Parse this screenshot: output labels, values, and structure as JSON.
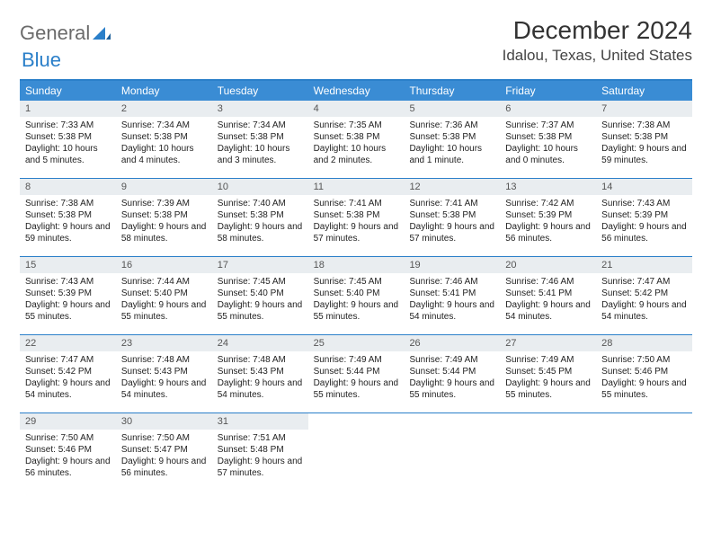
{
  "brand": {
    "part1": "General",
    "part2": "Blue",
    "color_general": "#6b6b6b",
    "color_blue": "#2a7fc9"
  },
  "header": {
    "month_title": "December 2024",
    "location": "Idalou, Texas, United States"
  },
  "colors": {
    "header_bg": "#3a8cd4",
    "header_text": "#ffffff",
    "divider": "#2a7fc9",
    "daynum_bg": "#e9edf0",
    "daynum_text": "#555555",
    "body_text": "#222222",
    "page_bg": "#ffffff"
  },
  "fonts": {
    "month_title_size": 28,
    "location_size": 17,
    "weekday_size": 12,
    "daynum_size": 11,
    "body_size": 10
  },
  "weekdays": [
    "Sunday",
    "Monday",
    "Tuesday",
    "Wednesday",
    "Thursday",
    "Friday",
    "Saturday"
  ],
  "weeks": [
    [
      {
        "n": "1",
        "sunrise": "Sunrise: 7:33 AM",
        "sunset": "Sunset: 5:38 PM",
        "daylight": "Daylight: 10 hours and 5 minutes."
      },
      {
        "n": "2",
        "sunrise": "Sunrise: 7:34 AM",
        "sunset": "Sunset: 5:38 PM",
        "daylight": "Daylight: 10 hours and 4 minutes."
      },
      {
        "n": "3",
        "sunrise": "Sunrise: 7:34 AM",
        "sunset": "Sunset: 5:38 PM",
        "daylight": "Daylight: 10 hours and 3 minutes."
      },
      {
        "n": "4",
        "sunrise": "Sunrise: 7:35 AM",
        "sunset": "Sunset: 5:38 PM",
        "daylight": "Daylight: 10 hours and 2 minutes."
      },
      {
        "n": "5",
        "sunrise": "Sunrise: 7:36 AM",
        "sunset": "Sunset: 5:38 PM",
        "daylight": "Daylight: 10 hours and 1 minute."
      },
      {
        "n": "6",
        "sunrise": "Sunrise: 7:37 AM",
        "sunset": "Sunset: 5:38 PM",
        "daylight": "Daylight: 10 hours and 0 minutes."
      },
      {
        "n": "7",
        "sunrise": "Sunrise: 7:38 AM",
        "sunset": "Sunset: 5:38 PM",
        "daylight": "Daylight: 9 hours and 59 minutes."
      }
    ],
    [
      {
        "n": "8",
        "sunrise": "Sunrise: 7:38 AM",
        "sunset": "Sunset: 5:38 PM",
        "daylight": "Daylight: 9 hours and 59 minutes."
      },
      {
        "n": "9",
        "sunrise": "Sunrise: 7:39 AM",
        "sunset": "Sunset: 5:38 PM",
        "daylight": "Daylight: 9 hours and 58 minutes."
      },
      {
        "n": "10",
        "sunrise": "Sunrise: 7:40 AM",
        "sunset": "Sunset: 5:38 PM",
        "daylight": "Daylight: 9 hours and 58 minutes."
      },
      {
        "n": "11",
        "sunrise": "Sunrise: 7:41 AM",
        "sunset": "Sunset: 5:38 PM",
        "daylight": "Daylight: 9 hours and 57 minutes."
      },
      {
        "n": "12",
        "sunrise": "Sunrise: 7:41 AM",
        "sunset": "Sunset: 5:38 PM",
        "daylight": "Daylight: 9 hours and 57 minutes."
      },
      {
        "n": "13",
        "sunrise": "Sunrise: 7:42 AM",
        "sunset": "Sunset: 5:39 PM",
        "daylight": "Daylight: 9 hours and 56 minutes."
      },
      {
        "n": "14",
        "sunrise": "Sunrise: 7:43 AM",
        "sunset": "Sunset: 5:39 PM",
        "daylight": "Daylight: 9 hours and 56 minutes."
      }
    ],
    [
      {
        "n": "15",
        "sunrise": "Sunrise: 7:43 AM",
        "sunset": "Sunset: 5:39 PM",
        "daylight": "Daylight: 9 hours and 55 minutes."
      },
      {
        "n": "16",
        "sunrise": "Sunrise: 7:44 AM",
        "sunset": "Sunset: 5:40 PM",
        "daylight": "Daylight: 9 hours and 55 minutes."
      },
      {
        "n": "17",
        "sunrise": "Sunrise: 7:45 AM",
        "sunset": "Sunset: 5:40 PM",
        "daylight": "Daylight: 9 hours and 55 minutes."
      },
      {
        "n": "18",
        "sunrise": "Sunrise: 7:45 AM",
        "sunset": "Sunset: 5:40 PM",
        "daylight": "Daylight: 9 hours and 55 minutes."
      },
      {
        "n": "19",
        "sunrise": "Sunrise: 7:46 AM",
        "sunset": "Sunset: 5:41 PM",
        "daylight": "Daylight: 9 hours and 54 minutes."
      },
      {
        "n": "20",
        "sunrise": "Sunrise: 7:46 AM",
        "sunset": "Sunset: 5:41 PM",
        "daylight": "Daylight: 9 hours and 54 minutes."
      },
      {
        "n": "21",
        "sunrise": "Sunrise: 7:47 AM",
        "sunset": "Sunset: 5:42 PM",
        "daylight": "Daylight: 9 hours and 54 minutes."
      }
    ],
    [
      {
        "n": "22",
        "sunrise": "Sunrise: 7:47 AM",
        "sunset": "Sunset: 5:42 PM",
        "daylight": "Daylight: 9 hours and 54 minutes."
      },
      {
        "n": "23",
        "sunrise": "Sunrise: 7:48 AM",
        "sunset": "Sunset: 5:43 PM",
        "daylight": "Daylight: 9 hours and 54 minutes."
      },
      {
        "n": "24",
        "sunrise": "Sunrise: 7:48 AM",
        "sunset": "Sunset: 5:43 PM",
        "daylight": "Daylight: 9 hours and 54 minutes."
      },
      {
        "n": "25",
        "sunrise": "Sunrise: 7:49 AM",
        "sunset": "Sunset: 5:44 PM",
        "daylight": "Daylight: 9 hours and 55 minutes."
      },
      {
        "n": "26",
        "sunrise": "Sunrise: 7:49 AM",
        "sunset": "Sunset: 5:44 PM",
        "daylight": "Daylight: 9 hours and 55 minutes."
      },
      {
        "n": "27",
        "sunrise": "Sunrise: 7:49 AM",
        "sunset": "Sunset: 5:45 PM",
        "daylight": "Daylight: 9 hours and 55 minutes."
      },
      {
        "n": "28",
        "sunrise": "Sunrise: 7:50 AM",
        "sunset": "Sunset: 5:46 PM",
        "daylight": "Daylight: 9 hours and 55 minutes."
      }
    ],
    [
      {
        "n": "29",
        "sunrise": "Sunrise: 7:50 AM",
        "sunset": "Sunset: 5:46 PM",
        "daylight": "Daylight: 9 hours and 56 minutes."
      },
      {
        "n": "30",
        "sunrise": "Sunrise: 7:50 AM",
        "sunset": "Sunset: 5:47 PM",
        "daylight": "Daylight: 9 hours and 56 minutes."
      },
      {
        "n": "31",
        "sunrise": "Sunrise: 7:51 AM",
        "sunset": "Sunset: 5:48 PM",
        "daylight": "Daylight: 9 hours and 57 minutes."
      },
      null,
      null,
      null,
      null
    ]
  ]
}
